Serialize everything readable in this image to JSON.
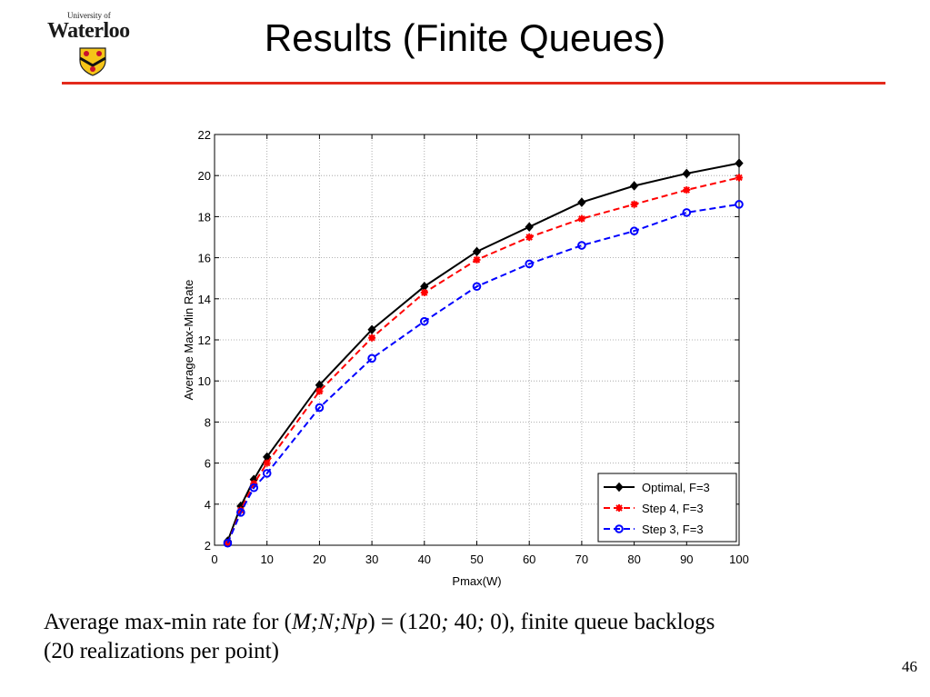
{
  "logo": {
    "university": "University of",
    "name": "Waterloo"
  },
  "slide": {
    "title": "Results (Finite Queues)",
    "page_number": "46"
  },
  "caption": {
    "prefix": "Average max-min rate for (",
    "params": "M;N;Np",
    "middle": ") = (120",
    "sep1": ";",
    "v2": " 40",
    "sep2": ";",
    "rest": " 0), finite queue backlogs",
    "line2": "(20 realizations per point)"
  },
  "colors": {
    "accent_rule": "#e32a1c",
    "optimal": "#000000",
    "step4": "#ff0000",
    "step3": "#0000ff"
  },
  "chart_data": {
    "type": "line",
    "title": "",
    "xlabel": "Pmax(W)",
    "ylabel": "Average Max-Min Rate",
    "xlim": [
      0,
      100
    ],
    "ylim": [
      2,
      22
    ],
    "xticks": [
      0,
      10,
      20,
      30,
      40,
      50,
      60,
      70,
      80,
      90,
      100
    ],
    "yticks": [
      2,
      4,
      6,
      8,
      10,
      12,
      14,
      16,
      18,
      20,
      22
    ],
    "grid": true,
    "legend_position": "bottom-right",
    "series": [
      {
        "name": "Optimal, F=3",
        "color": "#000000",
        "dash": "solid",
        "marker": "diamond",
        "x": [
          2.5,
          5,
          7.5,
          10,
          20,
          30,
          40,
          50,
          60,
          70,
          80,
          90,
          100
        ],
        "y": [
          2.2,
          3.9,
          5.2,
          6.3,
          9.8,
          12.5,
          14.6,
          16.3,
          17.5,
          18.7,
          19.5,
          20.1,
          20.6
        ]
      },
      {
        "name": "Step 4, F=3",
        "color": "#ff0000",
        "dash": "dashed",
        "marker": "star",
        "x": [
          2.5,
          5,
          7.5,
          10,
          20,
          30,
          40,
          50,
          60,
          70,
          80,
          90,
          100
        ],
        "y": [
          2.1,
          3.7,
          5.0,
          6.0,
          9.5,
          12.1,
          14.3,
          15.9,
          17.0,
          17.9,
          18.6,
          19.3,
          19.9
        ]
      },
      {
        "name": "Step 3, F=3",
        "color": "#0000ff",
        "dash": "dashed",
        "marker": "circle",
        "x": [
          2.5,
          5,
          7.5,
          10,
          20,
          30,
          40,
          50,
          60,
          70,
          80,
          90,
          100
        ],
        "y": [
          2.1,
          3.6,
          4.8,
          5.5,
          8.7,
          11.1,
          12.9,
          14.6,
          15.7,
          16.6,
          17.3,
          18.2,
          18.6
        ]
      }
    ]
  }
}
